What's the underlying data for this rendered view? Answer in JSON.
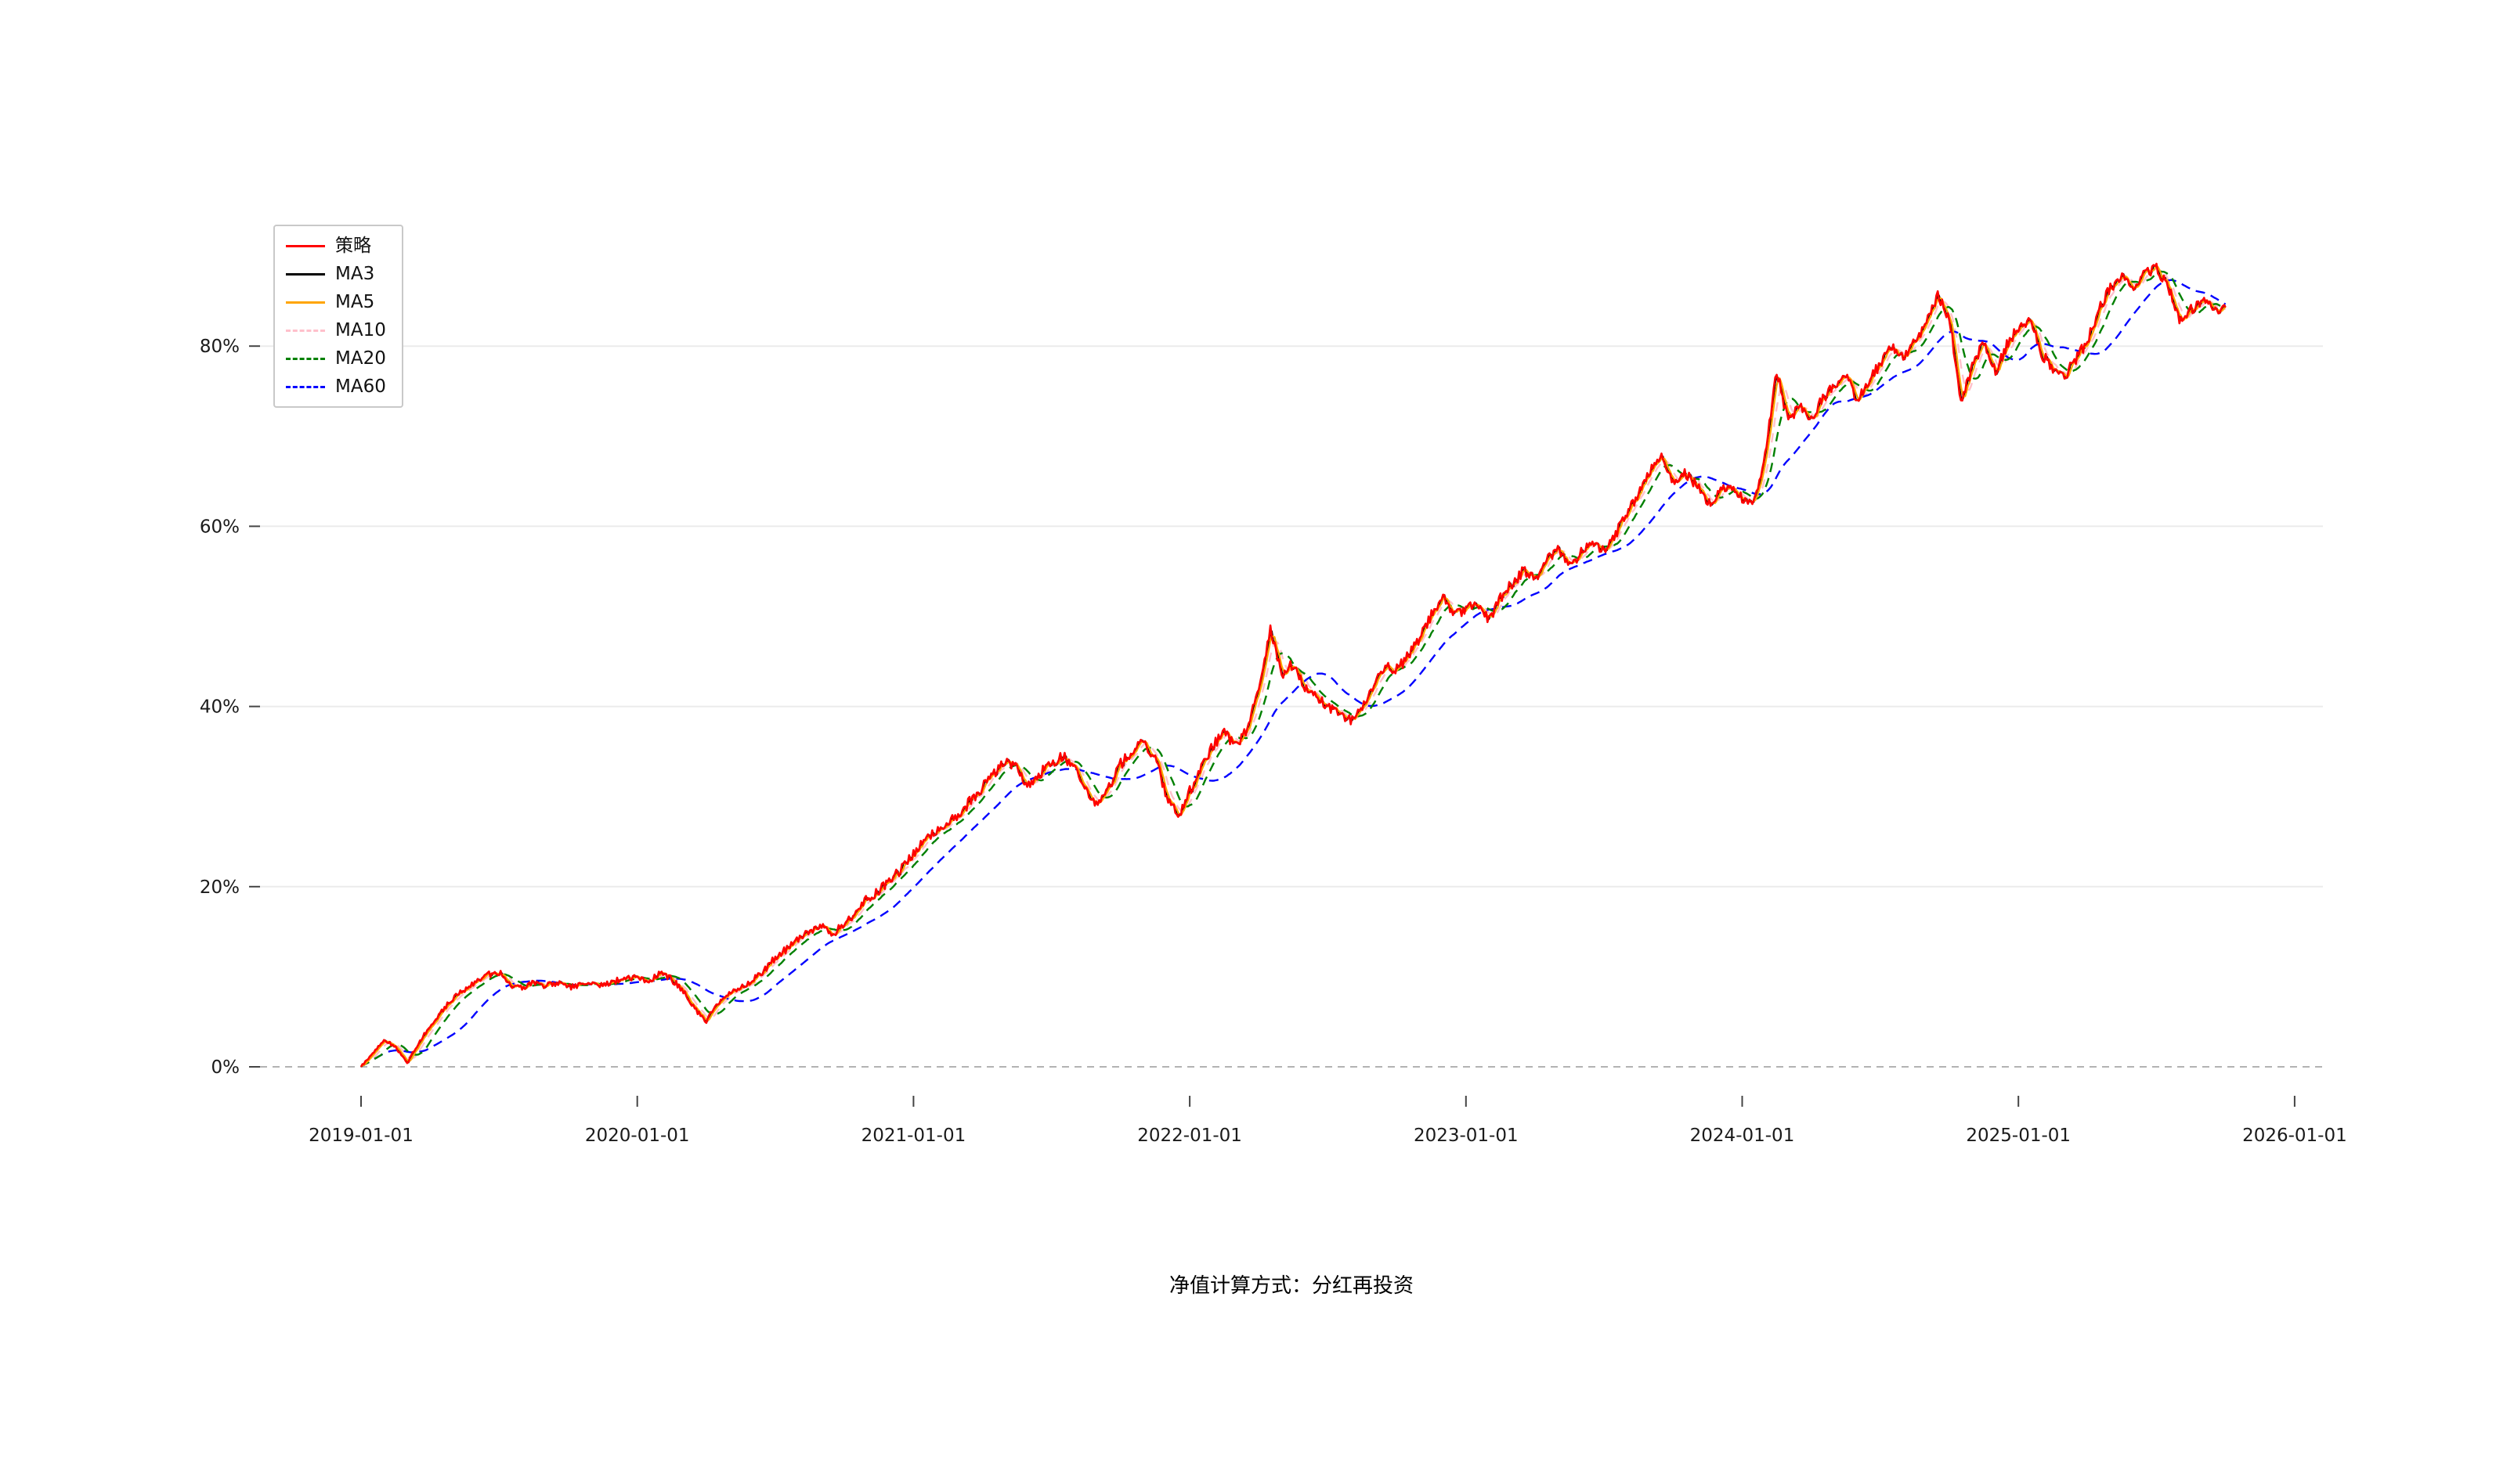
{
  "caption": "净值计算方式：分红再投资",
  "chart_data": {
    "type": "line",
    "title": "",
    "xlabel": "",
    "ylabel": "",
    "grid": true,
    "zero_line_dashed": true,
    "legend_position": "upper-left",
    "background": "#ffffff",
    "x_tick_labels": [
      "2019-01-01",
      "2020-01-01",
      "2021-01-01",
      "2022-01-01",
      "2023-01-01",
      "2024-01-01",
      "2025-01-01",
      "2026-01-01"
    ],
    "y_tick_labels": [
      "0%",
      "20%",
      "40%",
      "60%",
      "80%"
    ],
    "y_tick_values": [
      0,
      20,
      40,
      60,
      80
    ],
    "ylim": [
      -5,
      95
    ],
    "series": [
      {
        "key": "strategy",
        "name": "策略",
        "color": "#ff0000",
        "style": "solid"
      },
      {
        "key": "ma3",
        "name": "MA3",
        "color": "#000000",
        "style": "solid",
        "ma_window": 3
      },
      {
        "key": "ma5",
        "name": "MA5",
        "color": "#ffa500",
        "style": "solid",
        "ma_window": 5
      },
      {
        "key": "ma10",
        "name": "MA10",
        "color": "#ffc0cb",
        "style": "dashed",
        "ma_window": 10
      },
      {
        "key": "ma20",
        "name": "MA20",
        "color": "#008000",
        "style": "dashed",
        "ma_window": 20
      },
      {
        "key": "ma60",
        "name": "MA60",
        "color": "#0000ff",
        "style": "dashed",
        "ma_window": 60
      }
    ],
    "layout_hints": {
      "noise_amplitude": 0.6,
      "upsample": 8,
      "trading_days_per_year": 252,
      "draw_order": [
        "ma10",
        "ma60",
        "ma20",
        "ma3",
        "ma5",
        "strategy"
      ]
    },
    "strategy_keypoints_pct": [
      [
        2019.0,
        0.0
      ],
      [
        2019.042,
        1.5
      ],
      [
        2019.083,
        3.0
      ],
      [
        2019.125,
        2.2
      ],
      [
        2019.167,
        0.4
      ],
      [
        2019.208,
        2.6
      ],
      [
        2019.25,
        4.6
      ],
      [
        2019.292,
        6.2
      ],
      [
        2019.333,
        7.6
      ],
      [
        2019.375,
        8.6
      ],
      [
        2019.417,
        9.6
      ],
      [
        2019.458,
        10.2
      ],
      [
        2019.5,
        10.5
      ],
      [
        2019.542,
        9.1
      ],
      [
        2019.583,
        8.7
      ],
      [
        2019.625,
        9.4
      ],
      [
        2019.667,
        9.0
      ],
      [
        2019.708,
        9.3
      ],
      [
        2019.75,
        8.8
      ],
      [
        2019.792,
        9.1
      ],
      [
        2019.833,
        9.4
      ],
      [
        2019.875,
        9.0
      ],
      [
        2019.917,
        9.5
      ],
      [
        2019.958,
        9.8
      ],
      [
        2020.0,
        10.0
      ],
      [
        2020.042,
        9.5
      ],
      [
        2020.083,
        10.3
      ],
      [
        2020.125,
        9.7
      ],
      [
        2020.167,
        8.4
      ],
      [
        2020.208,
        6.4
      ],
      [
        2020.25,
        5.1
      ],
      [
        2020.292,
        7.1
      ],
      [
        2020.333,
        8.1
      ],
      [
        2020.375,
        8.8
      ],
      [
        2020.417,
        9.6
      ],
      [
        2020.458,
        10.6
      ],
      [
        2020.5,
        12.1
      ],
      [
        2020.542,
        13.1
      ],
      [
        2020.583,
        14.1
      ],
      [
        2020.625,
        15.1
      ],
      [
        2020.667,
        15.6
      ],
      [
        2020.708,
        14.6
      ],
      [
        2020.75,
        16.1
      ],
      [
        2020.792,
        17.1
      ],
      [
        2020.833,
        18.6
      ],
      [
        2020.875,
        19.6
      ],
      [
        2020.917,
        20.6
      ],
      [
        2020.958,
        22.1
      ],
      [
        2021.0,
        23.6
      ],
      [
        2021.042,
        25.1
      ],
      [
        2021.083,
        26.1
      ],
      [
        2021.125,
        27.1
      ],
      [
        2021.167,
        28.1
      ],
      [
        2021.208,
        29.6
      ],
      [
        2021.25,
        31.1
      ],
      [
        2021.292,
        32.6
      ],
      [
        2021.333,
        34.1
      ],
      [
        2021.375,
        33.1
      ],
      [
        2021.417,
        31.1
      ],
      [
        2021.458,
        32.6
      ],
      [
        2021.5,
        33.6
      ],
      [
        2021.542,
        34.6
      ],
      [
        2021.583,
        33.1
      ],
      [
        2021.625,
        30.6
      ],
      [
        2021.667,
        29.1
      ],
      [
        2021.708,
        31.1
      ],
      [
        2021.75,
        33.6
      ],
      [
        2021.792,
        35.1
      ],
      [
        2021.833,
        36.1
      ],
      [
        2021.875,
        34.1
      ],
      [
        2021.917,
        30.1
      ],
      [
        2021.958,
        27.6
      ],
      [
        2022.0,
        30.6
      ],
      [
        2022.042,
        33.1
      ],
      [
        2022.083,
        35.6
      ],
      [
        2022.125,
        37.1
      ],
      [
        2022.167,
        35.6
      ],
      [
        2022.208,
        37.6
      ],
      [
        2022.25,
        42.1
      ],
      [
        2022.292,
        48.5
      ],
      [
        2022.333,
        43.6
      ],
      [
        2022.375,
        44.8
      ],
      [
        2022.417,
        42.1
      ],
      [
        2022.458,
        41.1
      ],
      [
        2022.5,
        40.1
      ],
      [
        2022.542,
        39.1
      ],
      [
        2022.583,
        38.6
      ],
      [
        2022.625,
        40.1
      ],
      [
        2022.667,
        42.6
      ],
      [
        2022.708,
        44.6
      ],
      [
        2022.75,
        44.1
      ],
      [
        2022.792,
        45.6
      ],
      [
        2022.833,
        47.6
      ],
      [
        2022.875,
        50.1
      ],
      [
        2022.917,
        52.1
      ],
      [
        2022.958,
        50.1
      ],
      [
        2023.0,
        50.6
      ],
      [
        2023.042,
        51.6
      ],
      [
        2023.083,
        49.6
      ],
      [
        2023.125,
        52.1
      ],
      [
        2023.167,
        53.6
      ],
      [
        2023.208,
        55.1
      ],
      [
        2023.25,
        54.1
      ],
      [
        2023.292,
        56.1
      ],
      [
        2023.333,
        57.6
      ],
      [
        2023.375,
        55.6
      ],
      [
        2023.417,
        57.1
      ],
      [
        2023.458,
        58.6
      ],
      [
        2023.5,
        57.1
      ],
      [
        2023.542,
        59.1
      ],
      [
        2023.583,
        61.6
      ],
      [
        2023.625,
        63.6
      ],
      [
        2023.667,
        66.1
      ],
      [
        2023.708,
        67.6
      ],
      [
        2023.75,
        64.6
      ],
      [
        2023.792,
        66.1
      ],
      [
        2023.833,
        64.6
      ],
      [
        2023.875,
        62.6
      ],
      [
        2023.917,
        63.6
      ],
      [
        2023.958,
        64.6
      ],
      [
        2024.0,
        63.1
      ],
      [
        2024.042,
        62.6
      ],
      [
        2024.083,
        68.1
      ],
      [
        2024.125,
        77.2
      ],
      [
        2024.167,
        71.6
      ],
      [
        2024.208,
        73.6
      ],
      [
        2024.25,
        72.1
      ],
      [
        2024.292,
        74.1
      ],
      [
        2024.333,
        75.6
      ],
      [
        2024.375,
        76.6
      ],
      [
        2024.417,
        74.1
      ],
      [
        2024.458,
        76.1
      ],
      [
        2024.5,
        78.1
      ],
      [
        2024.542,
        80.1
      ],
      [
        2024.583,
        78.6
      ],
      [
        2024.625,
        80.6
      ],
      [
        2024.667,
        82.6
      ],
      [
        2024.708,
        85.5
      ],
      [
        2024.75,
        83.1
      ],
      [
        2024.792,
        74.1
      ],
      [
        2024.833,
        77.6
      ],
      [
        2024.875,
        80.6
      ],
      [
        2024.917,
        77.1
      ],
      [
        2024.958,
        80.1
      ],
      [
        2025.0,
        82.1
      ],
      [
        2025.042,
        83.1
      ],
      [
        2025.083,
        79.1
      ],
      [
        2025.125,
        77.6
      ],
      [
        2025.167,
        76.6
      ],
      [
        2025.208,
        78.6
      ],
      [
        2025.25,
        80.6
      ],
      [
        2025.292,
        84.1
      ],
      [
        2025.333,
        86.6
      ],
      [
        2025.375,
        87.6
      ],
      [
        2025.417,
        86.1
      ],
      [
        2025.458,
        88.1
      ],
      [
        2025.5,
        88.6
      ],
      [
        2025.542,
        86.6
      ],
      [
        2025.583,
        83.1
      ],
      [
        2025.625,
        84.1
      ],
      [
        2025.667,
        85.1
      ],
      [
        2025.708,
        84.1
      ],
      [
        2025.75,
        84.3
      ]
    ]
  }
}
